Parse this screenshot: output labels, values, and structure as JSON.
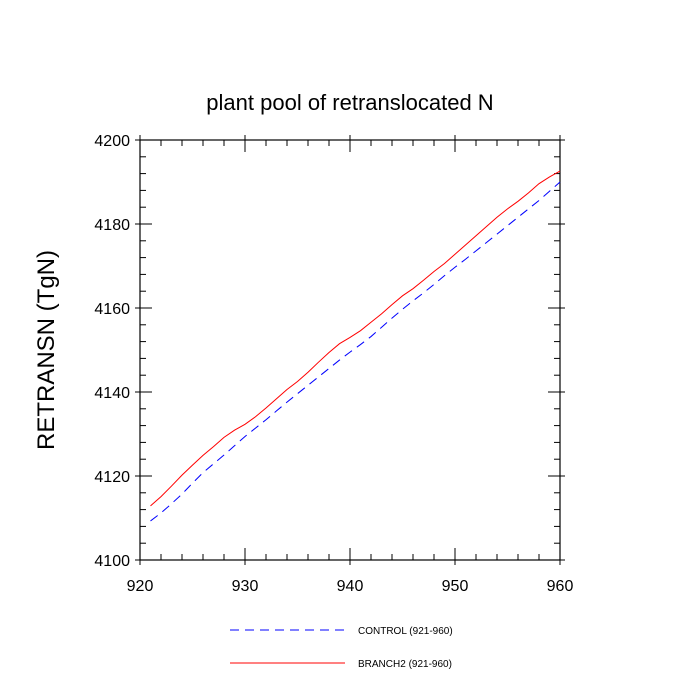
{
  "chart_data": {
    "type": "line",
    "title": "plant pool of retranslocated N",
    "xlabel": "",
    "ylabel": "RETRANSN  (TgN)",
    "xlim": [
      920,
      960
    ],
    "ylim": [
      4100,
      4200
    ],
    "xticks": [
      920,
      930,
      940,
      950,
      960
    ],
    "yticks": [
      4100,
      4120,
      4140,
      4160,
      4180,
      4200
    ],
    "grid": false,
    "legend_position": "bottom",
    "x": [
      921,
      922,
      923,
      924,
      925,
      926,
      927,
      928,
      929,
      930,
      931,
      932,
      933,
      934,
      935,
      936,
      937,
      938,
      939,
      940,
      941,
      942,
      943,
      944,
      945,
      946,
      947,
      948,
      949,
      950,
      951,
      952,
      953,
      954,
      955,
      956,
      957,
      958,
      959,
      960
    ],
    "series": [
      {
        "name": "CONTROL (921-960)",
        "color": "#0000ff",
        "dash": "dashed",
        "values": [
          4109.3,
          4111.2,
          4113.4,
          4115.7,
          4118.3,
          4120.8,
          4122.9,
          4125.0,
          4127.2,
          4129.4,
          4131.4,
          4133.4,
          4135.5,
          4137.6,
          4139.6,
          4141.6,
          4143.6,
          4145.6,
          4147.6,
          4149.5,
          4151.3,
          4153.2,
          4155.4,
          4157.6,
          4159.7,
          4161.7,
          4163.6,
          4165.6,
          4167.7,
          4169.7,
          4171.6,
          4173.6,
          4175.6,
          4177.6,
          4179.6,
          4181.6,
          4183.6,
          4185.6,
          4187.8,
          4190.0
        ]
      },
      {
        "name": "BRANCH2 (921-960)",
        "color": "#ff0000",
        "dash": "solid",
        "values": [
          4112.9,
          4115.1,
          4117.6,
          4120.2,
          4122.6,
          4124.9,
          4127.0,
          4129.2,
          4130.9,
          4132.3,
          4134.1,
          4136.2,
          4138.4,
          4140.6,
          4142.5,
          4144.7,
          4147.1,
          4149.4,
          4151.5,
          4153.0,
          4154.6,
          4156.6,
          4158.6,
          4160.8,
          4162.9,
          4164.6,
          4166.6,
          4168.7,
          4170.6,
          4172.8,
          4175.0,
          4177.2,
          4179.4,
          4181.6,
          4183.6,
          4185.4,
          4187.4,
          4189.6,
          4191.2,
          4192.6
        ]
      }
    ]
  }
}
